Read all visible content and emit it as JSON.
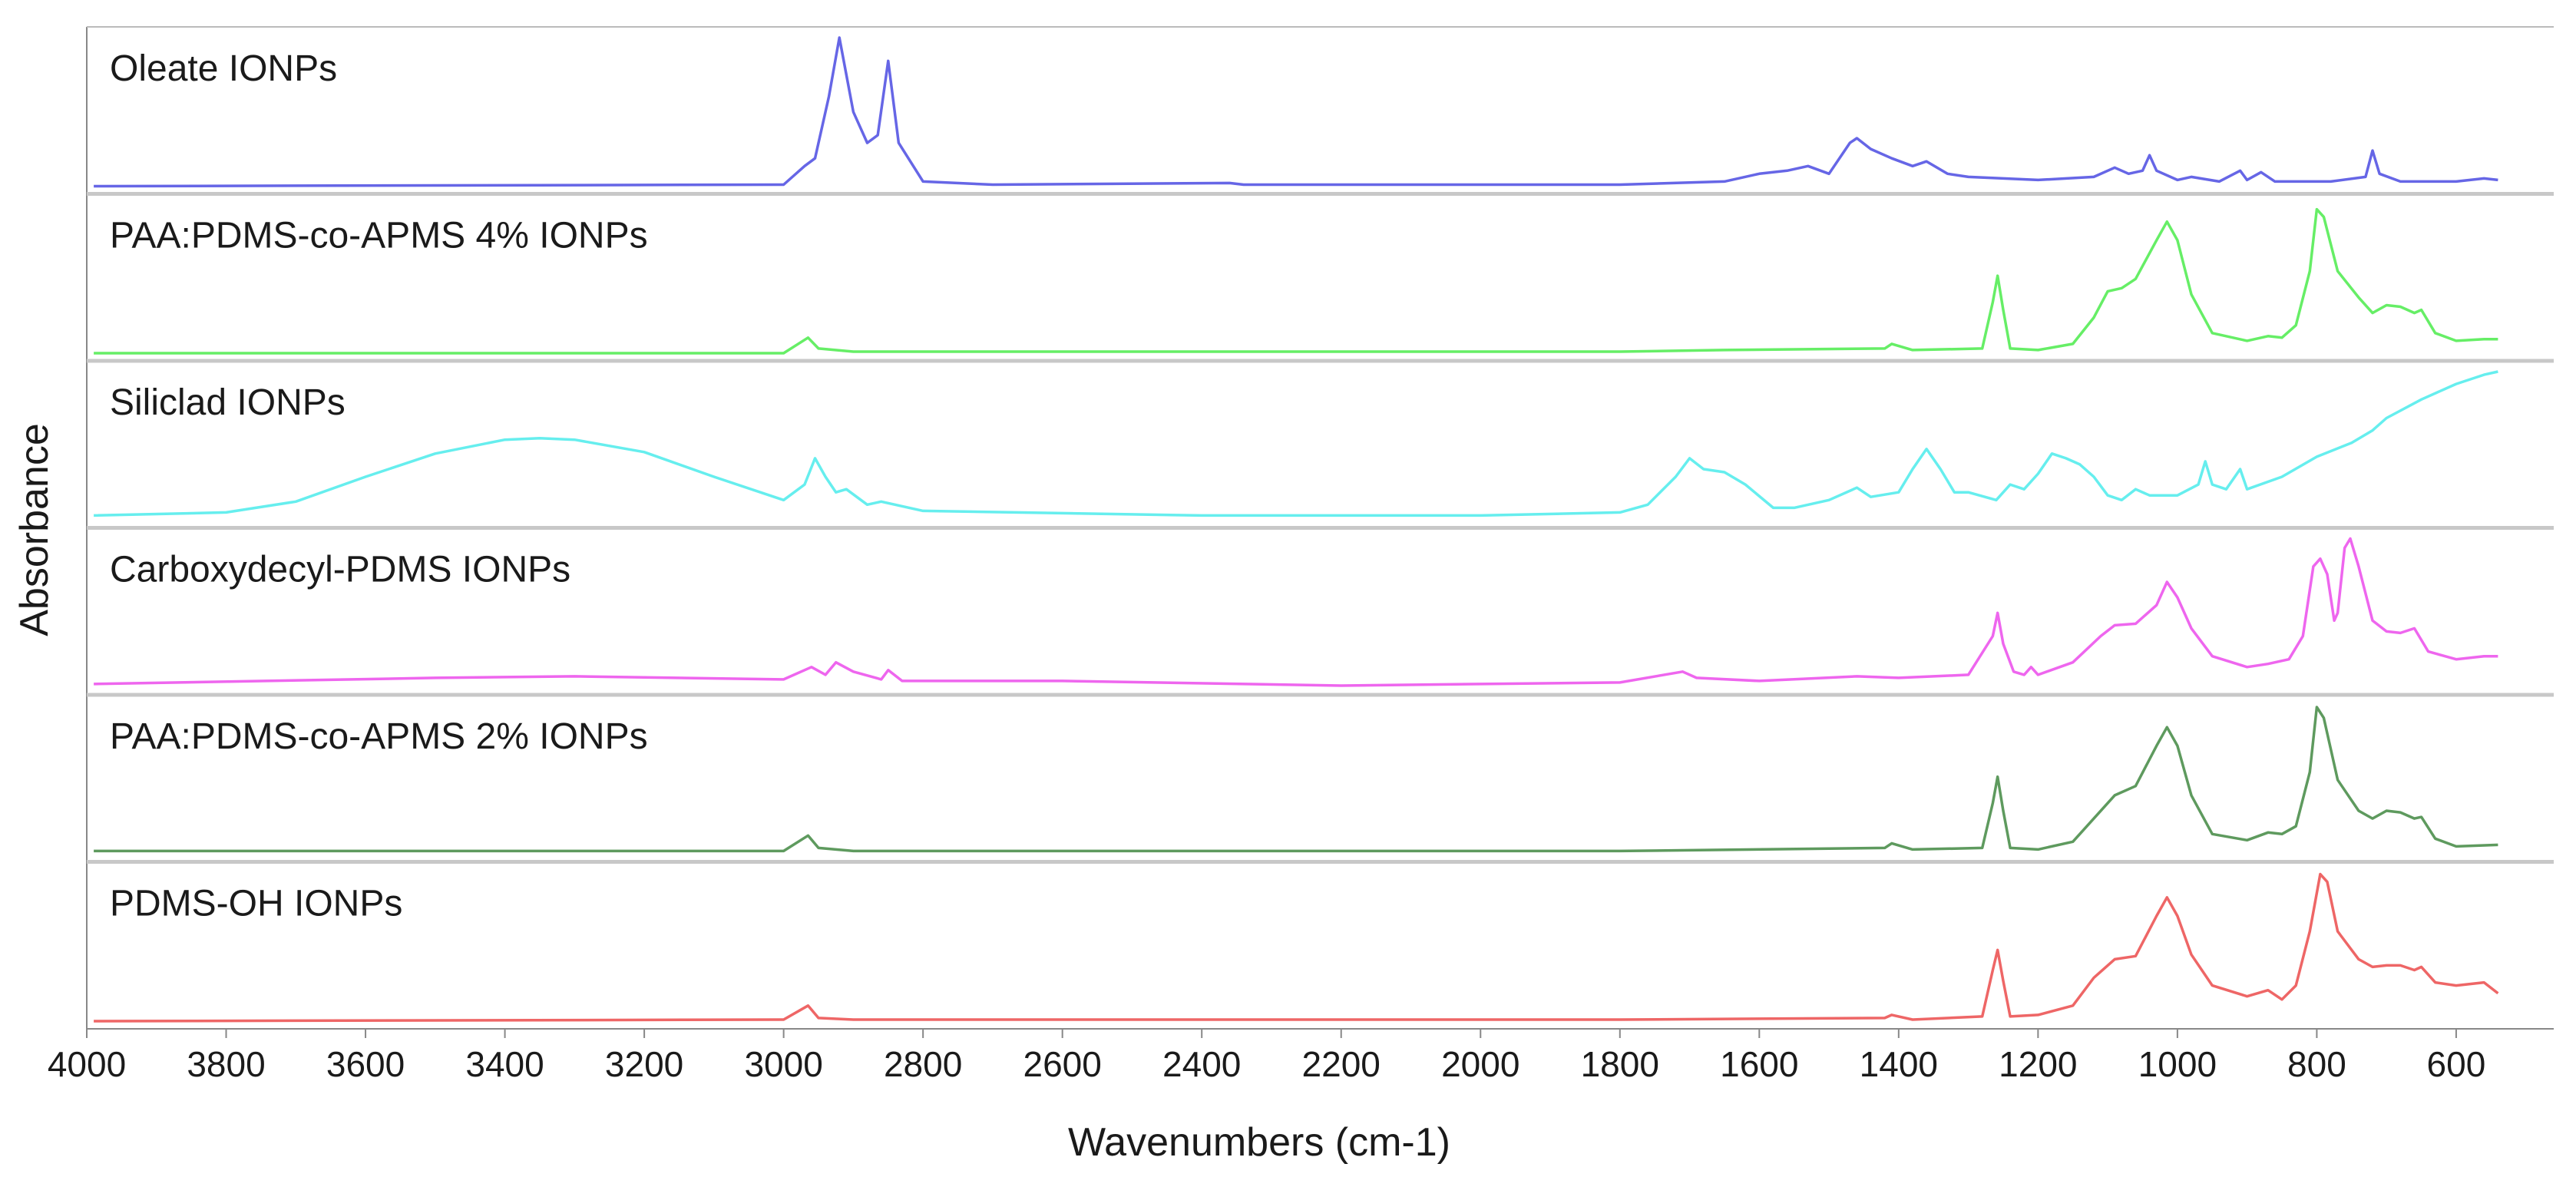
{
  "chart_data": {
    "type": "line",
    "xlabel": "Wavenumbers (cm-1)",
    "ylabel": "Absorbance",
    "xlim": [
      4000,
      460
    ],
    "xticks": [
      4000,
      3800,
      3600,
      3400,
      3200,
      3000,
      2800,
      2600,
      2400,
      2200,
      2000,
      1800,
      1600,
      1400,
      1200,
      1000,
      800,
      600
    ],
    "ylim": [
      0,
      1
    ],
    "series": [
      {
        "name": "Oleate IONPs",
        "color": "#6666e6",
        "x": [
          3990,
          3000,
          2970,
          2955,
          2935,
          2920,
          2900,
          2880,
          2865,
          2850,
          2835,
          2800,
          2700,
          2360,
          2340,
          1800,
          1650,
          1600,
          1560,
          1530,
          1500,
          1470,
          1460,
          1440,
          1410,
          1380,
          1360,
          1330,
          1300,
          1200,
          1120,
          1090,
          1070,
          1050,
          1040,
          1030,
          1000,
          980,
          940,
          910,
          900,
          880,
          860,
          780,
          730,
          720,
          710,
          680,
          600,
          560,
          540
        ],
        "values": [
          0.02,
          0.03,
          0.15,
          0.2,
          0.6,
          0.98,
          0.5,
          0.3,
          0.35,
          0.83,
          0.3,
          0.05,
          0.03,
          0.04,
          0.03,
          0.03,
          0.05,
          0.1,
          0.12,
          0.15,
          0.1,
          0.3,
          0.33,
          0.26,
          0.2,
          0.15,
          0.18,
          0.1,
          0.08,
          0.06,
          0.08,
          0.14,
          0.1,
          0.12,
          0.22,
          0.12,
          0.06,
          0.08,
          0.05,
          0.12,
          0.06,
          0.11,
          0.05,
          0.05,
          0.08,
          0.25,
          0.1,
          0.05,
          0.05,
          0.07,
          0.06
        ]
      },
      {
        "name": "PAA:PDMS-co-APMS 4% IONPs",
        "color": "#66ee66",
        "x": [
          3990,
          3000,
          2965,
          2950,
          2900,
          1800,
          1650,
          1420,
          1410,
          1380,
          1280,
          1265,
          1258,
          1250,
          1240,
          1200,
          1150,
          1120,
          1100,
          1080,
          1060,
          1030,
          1015,
          1000,
          980,
          950,
          900,
          870,
          850,
          830,
          810,
          800,
          790,
          770,
          740,
          720,
          700,
          680,
          660,
          650,
          630,
          600,
          560,
          540
        ],
        "values": [
          0.02,
          0.02,
          0.12,
          0.05,
          0.03,
          0.03,
          0.04,
          0.05,
          0.08,
          0.04,
          0.05,
          0.35,
          0.52,
          0.3,
          0.05,
          0.04,
          0.08,
          0.25,
          0.42,
          0.44,
          0.5,
          0.75,
          0.87,
          0.75,
          0.4,
          0.15,
          0.1,
          0.13,
          0.12,
          0.2,
          0.55,
          0.95,
          0.9,
          0.55,
          0.38,
          0.28,
          0.33,
          0.32,
          0.28,
          0.3,
          0.15,
          0.1,
          0.11,
          0.11
        ]
      },
      {
        "name": "Siliclad IONPs",
        "color": "#66eeee",
        "x": [
          3990,
          3800,
          3700,
          3600,
          3500,
          3400,
          3350,
          3300,
          3200,
          3100,
          3000,
          2970,
          2955,
          2940,
          2925,
          2910,
          2880,
          2860,
          2800,
          2400,
          2000,
          1800,
          1760,
          1720,
          1700,
          1680,
          1650,
          1620,
          1580,
          1550,
          1500,
          1460,
          1440,
          1400,
          1380,
          1360,
          1340,
          1320,
          1300,
          1260,
          1240,
          1220,
          1200,
          1180,
          1160,
          1140,
          1120,
          1100,
          1080,
          1060,
          1040,
          1000,
          970,
          960,
          950,
          930,
          910,
          900,
          850,
          800,
          750,
          720,
          700,
          650,
          600,
          560,
          540
        ],
        "values": [
          0.05,
          0.07,
          0.14,
          0.3,
          0.45,
          0.54,
          0.55,
          0.54,
          0.46,
          0.3,
          0.15,
          0.25,
          0.42,
          0.3,
          0.2,
          0.22,
          0.12,
          0.14,
          0.08,
          0.05,
          0.05,
          0.07,
          0.12,
          0.3,
          0.42,
          0.35,
          0.33,
          0.25,
          0.1,
          0.1,
          0.15,
          0.23,
          0.17,
          0.2,
          0.35,
          0.48,
          0.35,
          0.2,
          0.2,
          0.15,
          0.25,
          0.22,
          0.32,
          0.45,
          0.42,
          0.38,
          0.3,
          0.18,
          0.15,
          0.22,
          0.18,
          0.18,
          0.25,
          0.4,
          0.25,
          0.22,
          0.35,
          0.22,
          0.3,
          0.43,
          0.52,
          0.6,
          0.68,
          0.8,
          0.9,
          0.96,
          0.98
        ]
      },
      {
        "name": "Carboxydecyl-PDMS IONPs",
        "color": "#ee66ee",
        "x": [
          3990,
          3500,
          3300,
          3000,
          2960,
          2940,
          2925,
          2900,
          2860,
          2850,
          2830,
          2600,
          2200,
          2000,
          1800,
          1710,
          1690,
          1600,
          1460,
          1400,
          1300,
          1265,
          1258,
          1250,
          1235,
          1220,
          1210,
          1200,
          1150,
          1110,
          1090,
          1060,
          1030,
          1015,
          1000,
          980,
          950,
          900,
          870,
          840,
          820,
          805,
          795,
          785,
          775,
          770,
          760,
          752,
          740,
          720,
          700,
          680,
          660,
          640,
          600,
          560,
          540
        ],
        "values": [
          0.04,
          0.08,
          0.09,
          0.07,
          0.15,
          0.1,
          0.18,
          0.12,
          0.07,
          0.13,
          0.06,
          0.06,
          0.03,
          0.04,
          0.05,
          0.12,
          0.08,
          0.06,
          0.09,
          0.08,
          0.1,
          0.35,
          0.5,
          0.3,
          0.12,
          0.1,
          0.15,
          0.1,
          0.18,
          0.35,
          0.42,
          0.43,
          0.55,
          0.7,
          0.6,
          0.4,
          0.22,
          0.15,
          0.17,
          0.2,
          0.35,
          0.8,
          0.85,
          0.75,
          0.45,
          0.5,
          0.92,
          0.98,
          0.8,
          0.45,
          0.38,
          0.37,
          0.4,
          0.25,
          0.2,
          0.22,
          0.22
        ]
      },
      {
        "name": "PAA:PDMS-co-APMS 2% IONPs",
        "color": "#5e9a5e",
        "x": [
          3990,
          3000,
          2965,
          2950,
          2900,
          1800,
          1420,
          1410,
          1380,
          1280,
          1265,
          1258,
          1250,
          1240,
          1200,
          1150,
          1120,
          1090,
          1060,
          1030,
          1015,
          1000,
          980,
          950,
          900,
          870,
          850,
          830,
          810,
          800,
          790,
          770,
          740,
          720,
          700,
          680,
          660,
          650,
          630,
          600,
          540
        ],
        "values": [
          0.04,
          0.04,
          0.14,
          0.06,
          0.04,
          0.04,
          0.06,
          0.09,
          0.05,
          0.06,
          0.35,
          0.52,
          0.3,
          0.06,
          0.05,
          0.1,
          0.25,
          0.4,
          0.46,
          0.72,
          0.84,
          0.72,
          0.4,
          0.15,
          0.11,
          0.16,
          0.15,
          0.2,
          0.55,
          0.97,
          0.9,
          0.5,
          0.3,
          0.25,
          0.3,
          0.29,
          0.25,
          0.26,
          0.12,
          0.07,
          0.08
        ]
      },
      {
        "name": "PDMS-OH IONPs",
        "color": "#ee6666",
        "x": [
          3990,
          3000,
          2965,
          2950,
          2900,
          1800,
          1420,
          1410,
          1380,
          1280,
          1265,
          1258,
          1250,
          1240,
          1200,
          1150,
          1120,
          1090,
          1060,
          1030,
          1015,
          1000,
          980,
          950,
          900,
          870,
          850,
          830,
          810,
          795,
          785,
          770,
          740,
          720,
          700,
          680,
          660,
          650,
          630,
          600,
          560,
          540
        ],
        "values": [
          0.02,
          0.03,
          0.12,
          0.04,
          0.03,
          0.03,
          0.04,
          0.06,
          0.03,
          0.05,
          0.35,
          0.48,
          0.28,
          0.05,
          0.06,
          0.12,
          0.3,
          0.42,
          0.44,
          0.7,
          0.82,
          0.7,
          0.45,
          0.25,
          0.18,
          0.22,
          0.16,
          0.25,
          0.6,
          0.97,
          0.92,
          0.6,
          0.42,
          0.37,
          0.38,
          0.38,
          0.35,
          0.37,
          0.27,
          0.25,
          0.27,
          0.2
        ]
      }
    ]
  }
}
